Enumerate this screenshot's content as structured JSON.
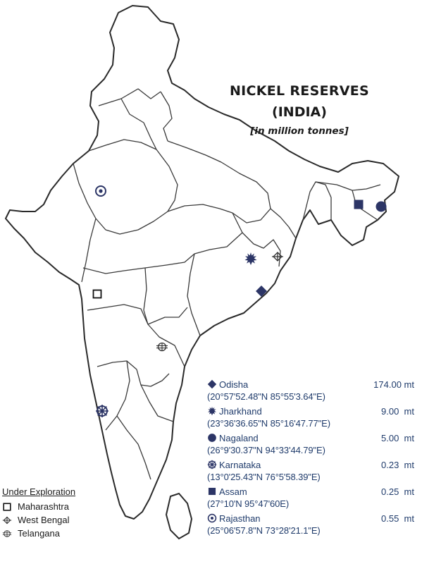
{
  "title": {
    "line1": "NICKEL RESERVES",
    "line2": "(INDIA)",
    "unit": "[in million tonnes]"
  },
  "reserves": [
    {
      "state": "Odisha",
      "value": "174.00 mt",
      "coordinates": "(20°57'52.48\"N 85°55'3.64\"E)",
      "icon": "diamond-icon"
    },
    {
      "state": "Jharkhand",
      "value": "9.00  mt",
      "coordinates": "(23°36'36.65\"N 85°16'47.77\"E)",
      "icon": "sunburst-icon"
    },
    {
      "state": "Nagaland",
      "value": "5.00  mt",
      "coordinates": "(26°9'30.37\"N 94°33'44.79\"E)",
      "icon": "circle-icon"
    },
    {
      "state": "Karnataka",
      "value": "0.23  mt",
      "coordinates": "(13°0'25.43\"N 76°5'58.39\"E)",
      "icon": "wheel-icon"
    },
    {
      "state": "Assam",
      "value": "0.25  mt",
      "coordinates": "(27°10'N 95°47'60E)",
      "icon": "square-icon"
    },
    {
      "state": "Rajasthan",
      "value": "0.55  mt",
      "coordinates": "(25°06'57.8\"N 73°28'21.1\"E)",
      "icon": "target-icon"
    }
  ],
  "exploration": {
    "heading": "Under Exploration",
    "items": [
      {
        "state": "Maharashtra",
        "icon": "hollow-square-icon"
      },
      {
        "state": "West Bengal",
        "icon": "crossed-diamond-icon"
      },
      {
        "state": "Telangana",
        "icon": "crossed-circle-icon"
      }
    ]
  },
  "colors": {
    "marker": "#2c3566",
    "legend_text": "#1f3b6b",
    "border": "#2a2a2a"
  }
}
